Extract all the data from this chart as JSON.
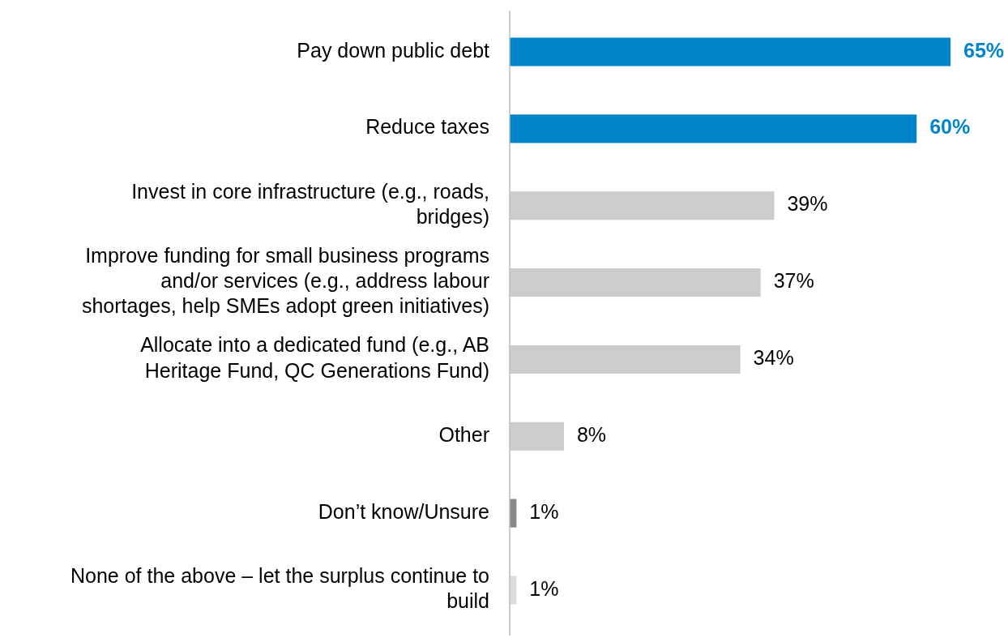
{
  "chart_data": {
    "type": "bar",
    "orientation": "horizontal",
    "data_labels": true,
    "categories": [
      "Pay down public debt",
      "Reduce taxes",
      "Invest in core infrastructure (e.g., roads, bridges)",
      "Improve funding for small business programs and/or services (e.g., address labour shortages, help SMEs adopt green initiatives)",
      "Allocate into a dedicated fund (e.g., AB Heritage Fund, QC Generations Fund)",
      "Other",
      "Don’t know/Unsure",
      "None of the above – let the surplus continue to build"
    ],
    "values": [
      65,
      60,
      39,
      37,
      34,
      8,
      1,
      1
    ],
    "value_labels": [
      "65%",
      "60%",
      "39%",
      "37%",
      "34%",
      "8%",
      "1%",
      "1%"
    ],
    "colors": [
      "#0085ca",
      "#0085ca",
      "#cccccc",
      "#cccccc",
      "#cccccc",
      "#cccccc",
      "#888888",
      "#dddddd"
    ]
  }
}
